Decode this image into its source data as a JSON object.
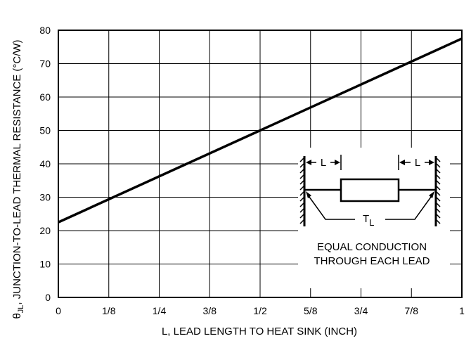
{
  "chart_data": {
    "type": "line",
    "xlabel": "L, LEAD LENGTH TO HEAT SINK (INCH)",
    "ylabel_symbol": "θ",
    "ylabel_sub": "JL",
    "ylabel_rest": ", JUNCTION-TO-LEAD THERMAL RESISTANCE  (°C/W)",
    "xlim": [
      0,
      1
    ],
    "ylim": [
      0,
      80
    ],
    "xticks": [
      {
        "value": 0,
        "label": "0"
      },
      {
        "value": 0.125,
        "label": "1/8"
      },
      {
        "value": 0.25,
        "label": "1/4"
      },
      {
        "value": 0.375,
        "label": "3/8"
      },
      {
        "value": 0.5,
        "label": "1/2"
      },
      {
        "value": 0.625,
        "label": "5/8"
      },
      {
        "value": 0.75,
        "label": "3/4"
      },
      {
        "value": 0.875,
        "label": "7/8"
      },
      {
        "value": 1,
        "label": "1"
      }
    ],
    "yticks": [
      {
        "value": 0,
        "label": "0"
      },
      {
        "value": 10,
        "label": "10"
      },
      {
        "value": 20,
        "label": "20"
      },
      {
        "value": 30,
        "label": "30"
      },
      {
        "value": 40,
        "label": "40"
      },
      {
        "value": 50,
        "label": "50"
      },
      {
        "value": 60,
        "label": "60"
      },
      {
        "value": 70,
        "label": "70"
      },
      {
        "value": 80,
        "label": "80"
      }
    ],
    "grid": true,
    "series": [
      {
        "x": [
          0,
          1
        ],
        "y": [
          22.5,
          77.5
        ]
      }
    ]
  },
  "inset": {
    "lead_label_left": "L",
    "lead_label_right": "L",
    "temp_symbol": "T",
    "temp_sub": "L",
    "caption_line1": "EQUAL CONDUCTION",
    "caption_line2": "THROUGH EACH LEAD"
  }
}
